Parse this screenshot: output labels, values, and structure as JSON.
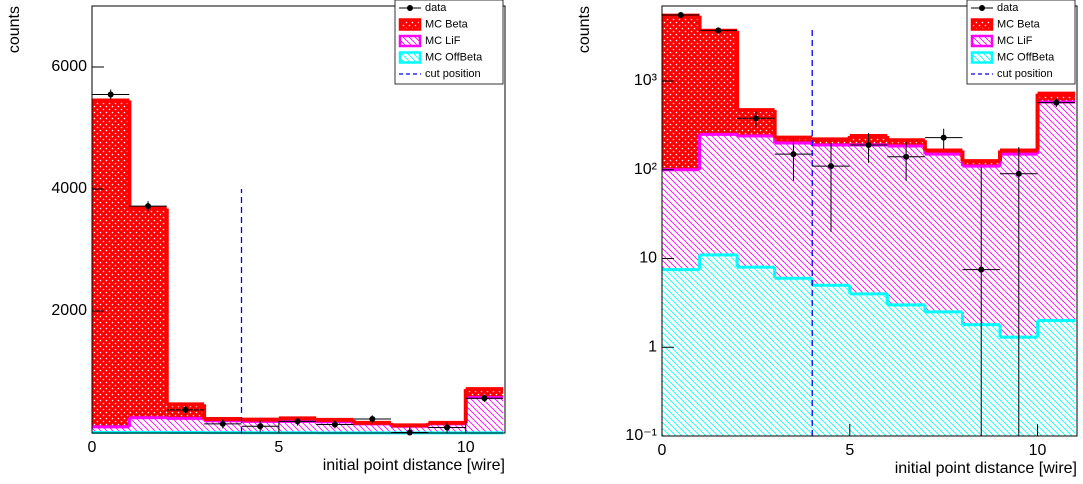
{
  "chart_data": [
    {
      "type": "histogram",
      "x_label": "initial point distance [wire]",
      "y_label": "counts",
      "bins": [
        0,
        1,
        2,
        3,
        4,
        5,
        6,
        7,
        8,
        9,
        10,
        11
      ],
      "xlim": [
        0,
        11.05
      ],
      "xticks": [
        0,
        5,
        10
      ],
      "ylim": [
        0,
        7000
      ],
      "yticks": [
        2000,
        4000,
        6000
      ],
      "log_y": false,
      "stacked": true,
      "legend": "top right",
      "points": {
        "name": "data",
        "color": "#000000",
        "values": [
          5550,
          3720,
          380,
          150,
          110,
          190,
          140,
          230,
          7.5,
          90,
          570
        ],
        "errors": [
          80,
          80,
          80,
          75,
          90,
          70,
          65,
          60,
          100,
          90,
          60
        ]
      },
      "series": [
        {
          "name": "MC Beta",
          "color": "#ff0000",
          "pattern": "crosshatch",
          "values": [
            5350,
            3430,
            230,
            30,
            30,
            50,
            30,
            15,
            15,
            15,
            140
          ]
        },
        {
          "name": "MC LiF",
          "color": "#ff00ff",
          "pattern": "hatch",
          "values": [
            92.5,
            239,
            232,
            194,
            185,
            186,
            182,
            147.5,
            108.2,
            148.7,
            578
          ]
        },
        {
          "name": "MC OffBeta",
          "color": "#00ffff",
          "pattern": "hatch",
          "values": [
            7.5,
            11,
            8,
            6,
            5,
            4,
            3,
            2.5,
            1.8,
            1.3,
            2
          ]
        }
      ],
      "cut": {
        "name": "cut position",
        "color": "#0000ff",
        "x": 4,
        "ymax": 4000
      }
    },
    {
      "type": "histogram",
      "x_label": "initial point distance [wire]",
      "y_label": "counts",
      "bins": [
        0,
        1,
        2,
        3,
        4,
        5,
        6,
        7,
        8,
        9,
        10,
        11
      ],
      "xlim": [
        0,
        11.05
      ],
      "xticks": [
        0,
        5,
        10
      ],
      "ylim": [
        0.1,
        7000
      ],
      "yticks": [
        {
          "value": 0.1,
          "label": "10⁻¹"
        },
        1,
        10,
        {
          "value": 100,
          "label": "10²"
        },
        {
          "value": 1000,
          "label": "10³"
        }
      ],
      "log_y": true,
      "stacked": true,
      "legend": "top right",
      "points": {
        "name": "data",
        "color": "#000000",
        "values": [
          5550,
          3720,
          380,
          150,
          110,
          190,
          140,
          230,
          7.5,
          90,
          570
        ],
        "errors": [
          80,
          80,
          80,
          75,
          90,
          70,
          65,
          60,
          100,
          90,
          60
        ]
      },
      "series": [
        {
          "name": "MC Beta",
          "color": "#ff0000",
          "pattern": "crosshatch",
          "values": [
            5350,
            3430,
            230,
            30,
            30,
            50,
            30,
            15,
            15,
            15,
            140
          ]
        },
        {
          "name": "MC LiF",
          "color": "#ff00ff",
          "pattern": "hatch",
          "values": [
            92.5,
            239,
            232,
            194,
            185,
            186,
            182,
            147.5,
            108.2,
            148.7,
            578
          ]
        },
        {
          "name": "MC OffBeta",
          "color": "#00ffff",
          "pattern": "hatch",
          "values": [
            7.5,
            11,
            8,
            6,
            5,
            4,
            3,
            2.5,
            1.8,
            1.3,
            2
          ]
        }
      ],
      "cut": {
        "name": "cut position",
        "color": "#0000ff",
        "x": 4,
        "ymax": 4000
      }
    }
  ]
}
